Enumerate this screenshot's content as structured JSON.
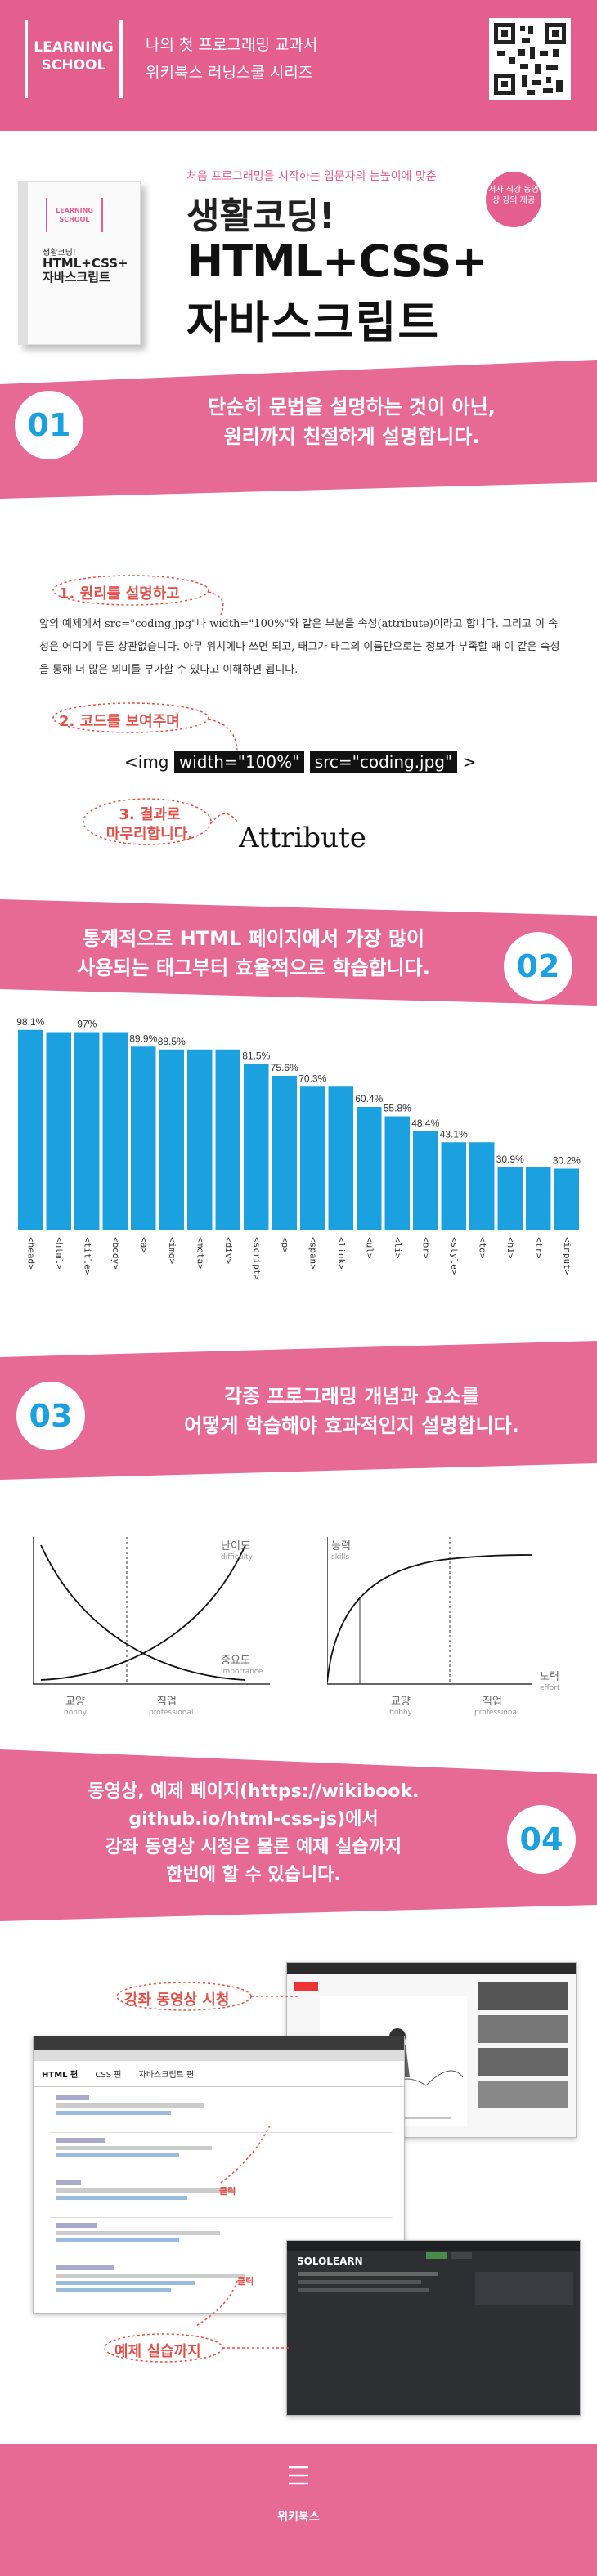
{
  "header": {
    "logo_line1": "LEARNING",
    "logo_line2": "SCHOOL",
    "line1": "나의 첫 프로그래밍 교과서",
    "line2": "위키북스 러닝스쿨 시리즈"
  },
  "book": {
    "tagline": "처음 프로그래밍을 시작하는 입문자의 눈높이에 맞춘",
    "title1": "생활코딩!",
    "title2": "HTML+CSS+",
    "title3": "자바스크립트",
    "badge": "저자 직강 동영상 강의 제공",
    "cover_badge": "LEARNING SCHOOL",
    "cover_t1": "생활코딩!",
    "cover_t2": "HTML+CSS+ 자바스크립트"
  },
  "sec1": {
    "num": "01",
    "line1": "단순히 문법을 설명하는 것이 아닌,",
    "line2": "원리까지 친절하게 설명합니다.",
    "label1": "1. 원리를 설명하고",
    "para": "앞의 예제에서 src=\"coding.jpg\"나 width=\"100%\"와 같은 부분을 속성(attribute)이라고 합니다. 그리고 이 속성은 어디에 두든 상관없습니다. 아무 위치에나 쓰면 되고, 태그가 태그의 이름만으로는 정보가 부족할 때 이 같은 속성을 통해 더 많은 의미를 부가할 수 있다고 이해하면 됩니다.",
    "label2": "2. 코드를 보여주며",
    "code_pre": "<img",
    "code_attr1": "width=\"100%\"",
    "code_attr2": "src=\"coding.jpg\"",
    "code_post": ">",
    "label3a": "3. 결과로",
    "label3b": "마무리합니다.",
    "result": "Attribute"
  },
  "sec2": {
    "num": "02",
    "line1": "통계적으로 HTML 페이지에서 가장 많이",
    "line2": "사용되는 태그부터 효율적으로 학습합니다."
  },
  "chart_data": {
    "type": "bar",
    "categories": [
      "<head>",
      "<html>",
      "<title>",
      "<body>",
      "<a>",
      "<img>",
      "<meta>",
      "<div>",
      "<script>",
      "<p>",
      "<span>",
      "<link>",
      "<ul>",
      "<li>",
      "<br>",
      "<style>",
      "<td>",
      "<h1>",
      "<tr>",
      "<input>"
    ],
    "values": [
      98.1,
      97,
      97,
      97,
      89.9,
      88.5,
      88.5,
      88.5,
      81.5,
      75.6,
      70.3,
      70.3,
      60.4,
      55.8,
      48.4,
      43.1,
      43.1,
      30.9,
      30.9,
      30.2
    ],
    "data_labels": [
      "98.1%",
      "",
      "97%",
      "",
      "89.9%",
      "88.5%",
      "",
      "",
      "81.5%",
      "75.6%",
      "70.3%",
      "",
      "60.4%",
      "55.8%",
      "48.4%",
      "43.1%",
      "",
      "30.9%",
      "",
      "30.2%"
    ],
    "color": "#1ca1e0",
    "ylim": [
      0,
      100
    ]
  },
  "sec3": {
    "num": "03",
    "line1": "각종 프로그래밍 개념과 요소를",
    "line2": "어떻게 학습해야 효과적인지 설명합니다.",
    "d1": {
      "difficulty": "난이도",
      "difficulty_en": "difficulty",
      "importance": "중요도",
      "importance_en": "importance",
      "hobby": "교양",
      "hobby_en": "hobby",
      "pro": "직업",
      "pro_en": "professional"
    },
    "d2": {
      "skills": "능력",
      "skills_en": "skills",
      "effort": "노력",
      "effort_en": "effort",
      "hobby": "교양",
      "hobby_en": "hobby",
      "pro": "직업",
      "pro_en": "professional"
    }
  },
  "sec4": {
    "num": "04",
    "line1": "동영상, 예제 페이지(https://wikibook.",
    "line2": "github.io/html-css-js)에서",
    "line3": "강좌 동영상 시청은 물론 예제 실습까지",
    "line4": "한번에 할 수 있습니다.",
    "label_video": "강좌 동영상 시청",
    "label_example": "예제 실습까지",
    "click1": "클릭",
    "click2": "클릭",
    "site_title": "HTML 편",
    "site_tab2": "CSS 편",
    "site_tab3": "자바스크립트 편",
    "solo": "SOLOLEARN"
  },
  "footer": {
    "brand": "위키북스"
  }
}
